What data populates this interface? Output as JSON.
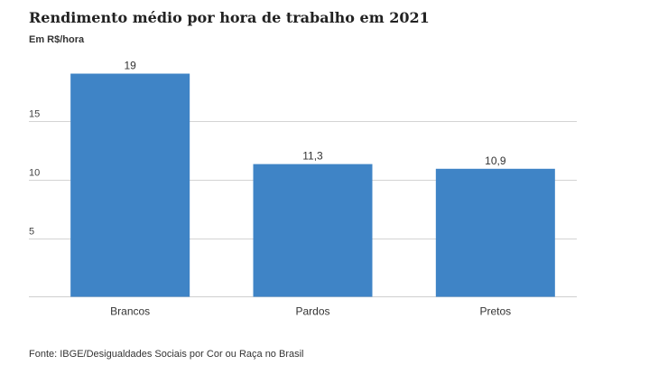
{
  "chart_data": {
    "type": "bar",
    "title": "Rendimento médio por hora de trabalho em 2021",
    "subtitle": "Em R$/hora",
    "categories": [
      "Brancos",
      "Pardos",
      "Pretos"
    ],
    "values": [
      19,
      11.3,
      10.9
    ],
    "value_labels": [
      "19",
      "11,3",
      "10,9"
    ],
    "yticks": [
      5,
      10,
      15
    ],
    "ylim": [
      0,
      20
    ],
    "grid": true,
    "bar_color": "#3f84c6",
    "source": "Fonte: IBGE/Desigualdades Sociais por Cor ou Raça no Brasil"
  }
}
